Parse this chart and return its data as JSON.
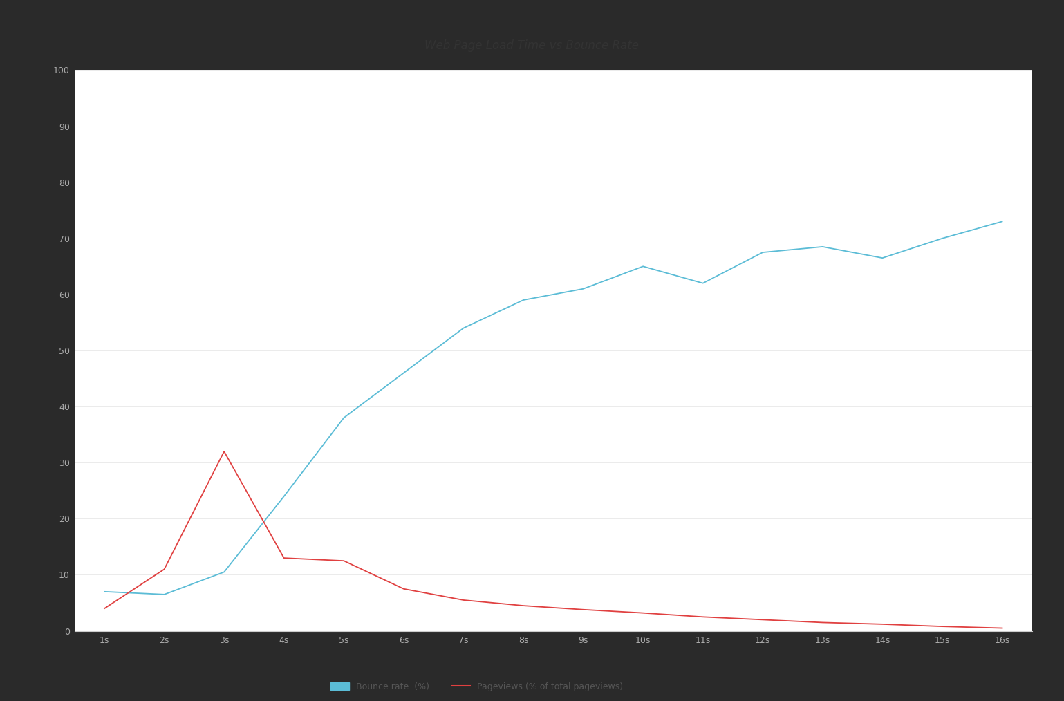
{
  "background_color": "#ffffff",
  "outer_background": "#2a2a2a",
  "frame_color": "#1a1a1a",
  "x_labels": [
    "1s",
    "2s",
    "3s",
    "4s",
    "5s",
    "6s",
    "7s",
    "8s",
    "9s",
    "10s",
    "11s",
    "12s",
    "13s",
    "14s",
    "15s",
    "16s"
  ],
  "x_values": [
    1,
    2,
    3,
    4,
    5,
    6,
    7,
    8,
    9,
    10,
    11,
    12,
    13,
    14,
    15,
    16
  ],
  "bounce_rate": [
    7,
    6.5,
    10.5,
    24,
    38,
    46,
    54,
    59,
    61,
    65,
    62,
    67.5,
    68.5,
    66.5,
    70,
    73
  ],
  "pageviews": [
    4,
    11,
    32,
    13,
    12.5,
    7.5,
    5.5,
    4.5,
    3.8,
    3.2,
    2.5,
    2.0,
    1.5,
    1.2,
    0.8,
    0.5
  ],
  "bounce_color": "#5bbcd6",
  "pageviews_color": "#e04040",
  "ylim": [
    0,
    100
  ],
  "yticks": [
    0,
    10,
    20,
    30,
    40,
    50,
    60,
    70,
    80,
    90,
    100
  ],
  "legend_bounce": "Bounce rate  (%)",
  "legend_pageviews": "Pageviews (% of total pageviews)",
  "title_fontsize": 12,
  "tick_fontsize": 9,
  "line_width": 1.3,
  "grid_color": "#e8e8e8",
  "tick_color": "#aaaaaa",
  "spine_color": "#cccccc"
}
